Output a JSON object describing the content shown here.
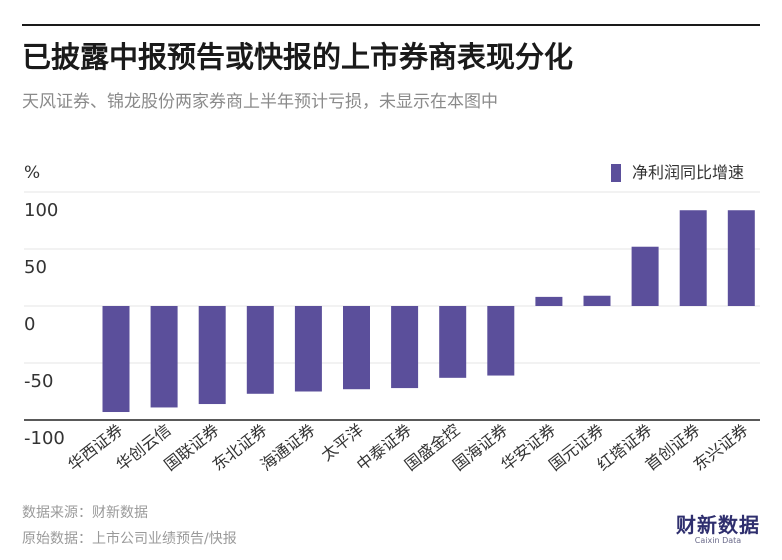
{
  "header": {
    "title": "已披露中报预告或快报的上市券商表现分化",
    "subtitle": "天风证券、锦龙股份两家券商上半年预计亏损，未显示在本图中"
  },
  "footer": {
    "source": "数据来源：财新数据",
    "origin": "原始数据：上市公司业绩预告/快报"
  },
  "logo": {
    "main": "财新数据",
    "sub": "Caixin Data"
  },
  "colors": {
    "bar": "#5b4f9b",
    "grid": "#e6e6e6",
    "axis": "#222222"
  },
  "chart_data": {
    "type": "bar",
    "unit_label": "%",
    "categories": [
      "华西证券",
      "华创云信",
      "国联证券",
      "东北证券",
      "海通证券",
      "太平洋",
      "中泰证券",
      "国盛金控",
      "国海证券",
      "华安证券",
      "国元证券",
      "红塔证券",
      "首创证券",
      "东兴证券"
    ],
    "series": [
      {
        "name": "净利润同比增速",
        "values": [
          -93,
          -89,
          -86,
          -77,
          -75,
          -73,
          -72,
          -63,
          -61,
          8,
          9,
          52,
          84,
          84
        ]
      }
    ],
    "ylim": [
      -100,
      100
    ],
    "yticks": [
      100,
      50,
      0,
      -50,
      -100
    ],
    "ytick_labels": [
      "100",
      "50",
      "0",
      "-50",
      "-100"
    ],
    "grid": true,
    "legend": "top-right"
  }
}
